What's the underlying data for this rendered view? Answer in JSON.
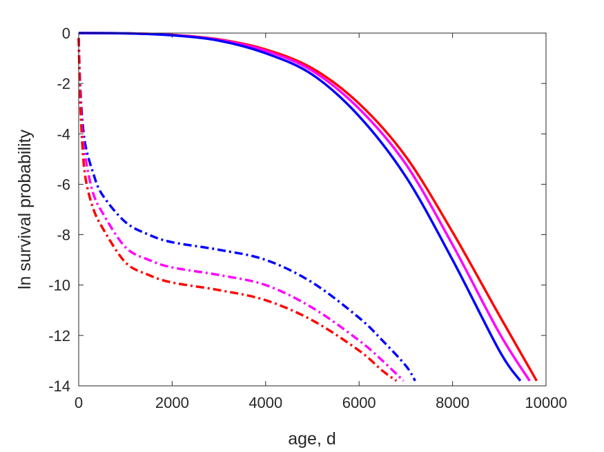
{
  "chart_data": {
    "type": "line",
    "title": "",
    "xlabel": "age, d",
    "ylabel": "ln survival probability",
    "xlim": [
      0,
      10000
    ],
    "ylim": [
      -14,
      0
    ],
    "xticks": [
      0,
      2000,
      4000,
      6000,
      8000,
      10000
    ],
    "xtick_labels": [
      "0",
      "2000",
      "4000",
      "6000",
      "8000",
      "10000"
    ],
    "yticks": [
      0,
      -2,
      -4,
      -6,
      -8,
      -10,
      -12,
      -14
    ],
    "ytick_labels": [
      "0",
      "-2",
      "-4",
      "-6",
      "-8",
      "-10",
      "-12",
      "-14"
    ],
    "grid": false,
    "legend": "none",
    "series": [
      {
        "color": "#ff0000",
        "style": "solid",
        "x": [
          0,
          1000,
          2000,
          3000,
          4000,
          5000,
          6000,
          7000,
          8000,
          9000,
          9800
        ],
        "y": [
          0,
          -0.01,
          -0.07,
          -0.25,
          -0.65,
          -1.4,
          -2.8,
          -4.9,
          -7.9,
          -11.2,
          -13.8
        ]
      },
      {
        "color": "#ff00ff",
        "style": "solid",
        "x": [
          0,
          1000,
          2000,
          3000,
          4000,
          5000,
          6000,
          7000,
          8000,
          9000,
          9650
        ],
        "y": [
          0,
          -0.01,
          -0.08,
          -0.27,
          -0.7,
          -1.5,
          -3.0,
          -5.2,
          -8.4,
          -11.9,
          -13.8
        ]
      },
      {
        "color": "#0000ff",
        "style": "solid",
        "x": [
          0,
          1000,
          2000,
          3000,
          4000,
          5000,
          6000,
          7000,
          8000,
          9000,
          9450
        ],
        "y": [
          0,
          -0.01,
          -0.09,
          -0.3,
          -0.8,
          -1.65,
          -3.3,
          -5.7,
          -9.0,
          -12.6,
          -13.8
        ]
      },
      {
        "color": "#0000ff",
        "style": "dashdot",
        "x": [
          0,
          30,
          80,
          150,
          300,
          500,
          1000,
          1500,
          2000,
          3000,
          4000,
          5000,
          6000,
          6500,
          7000,
          7200
        ],
        "y": [
          -0.2,
          -2.0,
          -3.5,
          -4.5,
          -5.5,
          -6.4,
          -7.5,
          -8.0,
          -8.3,
          -8.6,
          -9.0,
          -9.9,
          -11.3,
          -12.2,
          -13.2,
          -13.8
        ]
      },
      {
        "color": "#ff00ff",
        "style": "dashdot",
        "x": [
          0,
          30,
          80,
          150,
          300,
          500,
          1000,
          1500,
          2000,
          3000,
          4000,
          5000,
          6000,
          6500,
          6950
        ],
        "y": [
          -0.2,
          -2.2,
          -4.0,
          -5.0,
          -6.3,
          -7.1,
          -8.5,
          -9.0,
          -9.3,
          -9.6,
          -10.0,
          -10.9,
          -12.2,
          -13.0,
          -13.8
        ]
      },
      {
        "color": "#ff0000",
        "style": "dashdot",
        "x": [
          0,
          30,
          80,
          150,
          300,
          500,
          1000,
          1500,
          2000,
          3000,
          4000,
          5000,
          6000,
          6500,
          6800
        ],
        "y": [
          -0.2,
          -2.5,
          -4.5,
          -5.8,
          -6.9,
          -7.7,
          -9.1,
          -9.6,
          -9.9,
          -10.2,
          -10.6,
          -11.4,
          -12.6,
          -13.4,
          -13.8
        ]
      }
    ]
  }
}
